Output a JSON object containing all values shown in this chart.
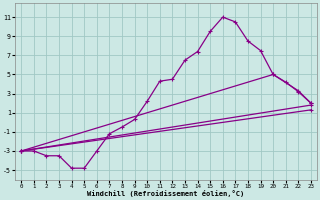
{
  "xlabel": "Windchill (Refroidissement éolien,°C)",
  "bg_color": "#cce8e4",
  "grid_color": "#a0c8c4",
  "line_color": "#880088",
  "xlim": [
    -0.5,
    23.5
  ],
  "ylim": [
    -6,
    12.5
  ],
  "xticks": [
    0,
    1,
    2,
    3,
    4,
    5,
    6,
    7,
    8,
    9,
    10,
    11,
    12,
    13,
    14,
    15,
    16,
    17,
    18,
    19,
    20,
    21,
    22,
    23
  ],
  "yticks": [
    -5,
    -3,
    -1,
    1,
    3,
    5,
    7,
    9,
    11
  ],
  "line1_x": [
    0,
    1,
    2,
    3,
    4,
    5,
    6,
    7,
    8,
    9,
    10,
    11,
    12,
    13,
    14,
    15,
    16,
    17,
    18,
    19,
    20,
    21,
    22,
    23
  ],
  "line1_y": [
    -3.0,
    -3.0,
    -3.5,
    -3.5,
    -4.8,
    -4.8,
    -3.0,
    -1.2,
    -0.5,
    0.3,
    2.2,
    4.3,
    4.5,
    6.5,
    7.4,
    9.5,
    11.0,
    10.5,
    8.5,
    7.5,
    5.0,
    4.2,
    3.2,
    2.0
  ],
  "line2_x": [
    0,
    20,
    22,
    23
  ],
  "line2_y": [
    -3,
    5.0,
    3.3,
    2.0
  ],
  "line3_x": [
    0,
    23
  ],
  "line3_y": [
    -3,
    1.8
  ],
  "line4_x": [
    0,
    23
  ],
  "line4_y": [
    -3,
    1.3
  ],
  "marker": "+"
}
